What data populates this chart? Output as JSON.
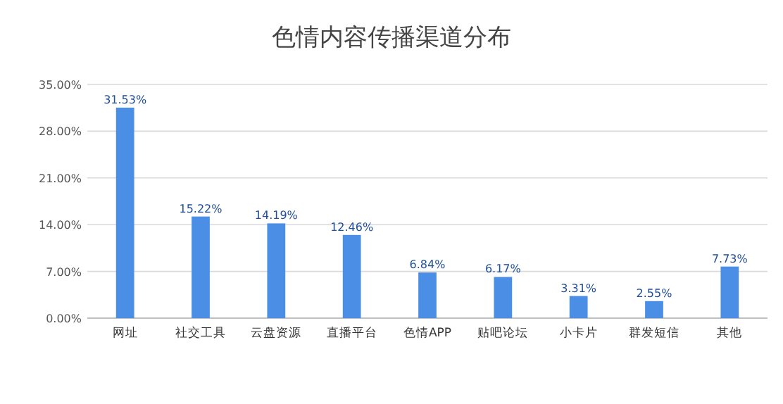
{
  "chart_data": {
    "type": "bar",
    "title": "色情内容传播渠道分布",
    "categories": [
      "网址",
      "社交工具",
      "云盘资源",
      "直播平台",
      "色情APP",
      "贴吧论坛",
      "小卡片",
      "群发短信",
      "其他"
    ],
    "values": [
      31.53,
      15.22,
      14.19,
      12.46,
      6.84,
      6.17,
      3.31,
      2.55,
      7.73
    ],
    "value_labels": [
      "31.53%",
      "15.22%",
      "14.19%",
      "12.46%",
      "6.84%",
      "6.17%",
      "3.31%",
      "2.55%",
      "7.73%"
    ],
    "color": "#4a8ee6",
    "ylim": [
      0,
      35
    ],
    "yticks": [
      {
        "value": 0,
        "label": "0.00%"
      },
      {
        "value": 7,
        "label": "7.00%"
      },
      {
        "value": 14,
        "label": "14.00%"
      },
      {
        "value": 21,
        "label": "21.00%"
      },
      {
        "value": 28,
        "label": "28.00%"
      },
      {
        "value": 35,
        "label": "35.00%"
      }
    ],
    "grid": "y"
  }
}
